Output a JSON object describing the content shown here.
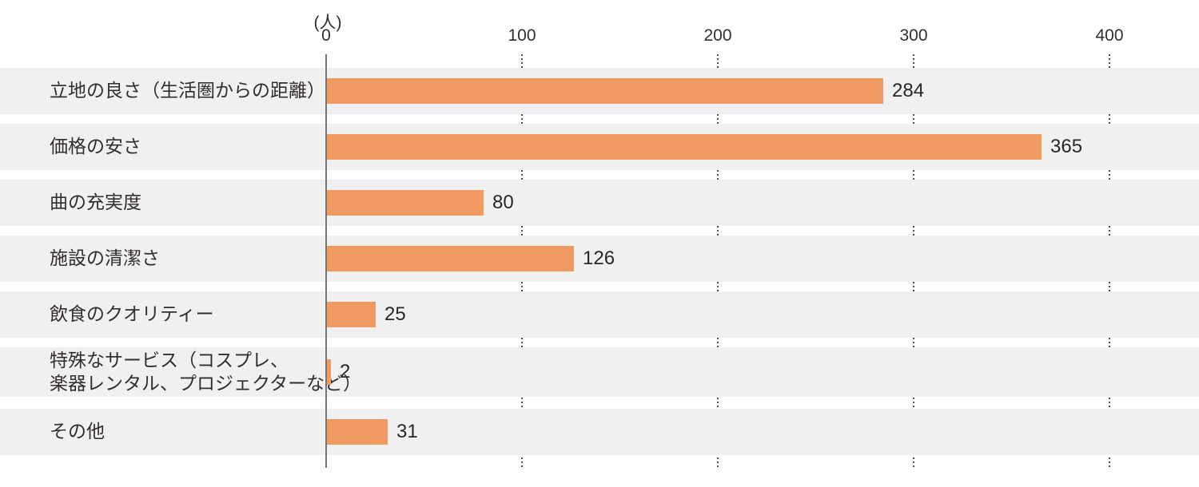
{
  "chart_data": {
    "type": "bar",
    "orientation": "horizontal",
    "title": "",
    "unit_label": "(人)",
    "categories": [
      "立地の良さ（生活圏からの距離）",
      "価格の安さ",
      "曲の充実度",
      "施設の清潔さ",
      "飲食のクオリティー",
      "特殊なサービス（コスプレ、\n楽器レンタル、プロジェクターなど）",
      "その他"
    ],
    "values": [
      284,
      365,
      80,
      126,
      25,
      2,
      31
    ],
    "value_labels": [
      "284",
      "365",
      "80",
      "126",
      "25",
      "2",
      "31"
    ],
    "x_ticks": [
      0,
      100,
      200,
      300,
      400
    ],
    "xlim": [
      0,
      445
    ],
    "grid": "dotted vertical gridlines at each tick, visible in gaps between row bands",
    "legend_position": "none",
    "colors": {
      "bar": "#F09A61",
      "row_band": "#F0F0F0",
      "text": "#332E2C",
      "value_text": "#2B2725",
      "axis_line": "#757575",
      "grid_dots": "#4A4A4A",
      "background": "#FFFFFF"
    }
  }
}
